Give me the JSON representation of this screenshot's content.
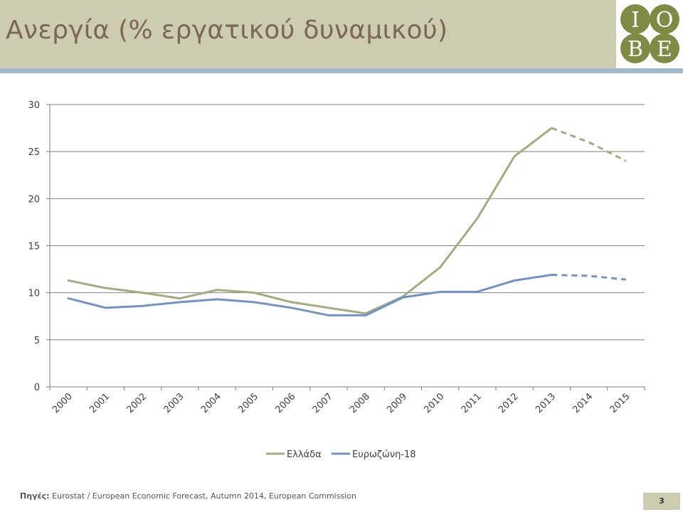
{
  "slide": {
    "title": "Ανεργία (% εργατικού δυναμικού)",
    "source_label": "Πηγές:",
    "source_text": "Eurostat / European Economic Forecast, Autumn 2014, European Commission",
    "page_number": "3",
    "logo": {
      "letters": [
        "I",
        "O",
        "B",
        "E"
      ],
      "color": "#7f8a45"
    }
  },
  "chart_data": {
    "type": "line",
    "categories": [
      "2000",
      "2001",
      "2002",
      "2003",
      "2004",
      "2005",
      "2006",
      "2007",
      "2008",
      "2009",
      "2010",
      "2011",
      "2012",
      "2013",
      "2014",
      "2015"
    ],
    "ylim": [
      0,
      30
    ],
    "yticks": [
      "0",
      "5",
      "10",
      "15",
      "20",
      "25",
      "30"
    ],
    "grid": true,
    "legend_position": "bottom",
    "forecast_from": "2013",
    "series": [
      {
        "name": "Ελλάδα",
        "color": "#a3ab7f",
        "values": [
          11.3,
          10.5,
          10.0,
          9.4,
          10.3,
          10.0,
          9.0,
          8.4,
          7.8,
          9.6,
          12.7,
          17.9,
          24.5,
          27.5,
          26.0,
          24.0
        ]
      },
      {
        "name": "Ευρωζώνη-18",
        "color": "#7293c5",
        "values": [
          9.4,
          8.4,
          8.6,
          9.0,
          9.3,
          9.0,
          8.4,
          7.6,
          7.6,
          9.5,
          10.1,
          10.1,
          11.3,
          11.9,
          11.8,
          11.4
        ]
      }
    ]
  }
}
